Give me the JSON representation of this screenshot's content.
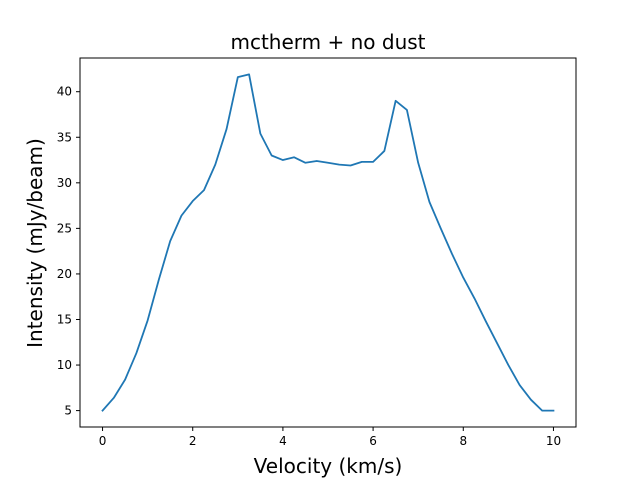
{
  "chart_data": {
    "type": "line",
    "title": "mctherm + no dust",
    "xlabel": "Velocity (km/s)",
    "ylabel": "Intensity (mJy/beam)",
    "xlim": [
      -0.5,
      10.5
    ],
    "ylim": [
      3.2,
      43.7
    ],
    "xticks": [
      0,
      2,
      4,
      6,
      8,
      10
    ],
    "yticks": [
      5,
      10,
      15,
      20,
      25,
      30,
      35,
      40
    ],
    "grid": false,
    "series": [
      {
        "color": "#1f77b4",
        "x": [
          0.0,
          0.25,
          0.5,
          0.75,
          1.0,
          1.25,
          1.5,
          1.75,
          2.0,
          2.25,
          2.5,
          2.75,
          3.0,
          3.25,
          3.5,
          3.75,
          4.0,
          4.25,
          4.5,
          4.75,
          5.0,
          5.25,
          5.5,
          5.75,
          6.0,
          6.25,
          6.5,
          6.75,
          7.0,
          7.25,
          7.5,
          7.75,
          8.0,
          8.25,
          8.5,
          8.75,
          9.0,
          9.25,
          9.5,
          9.75,
          10.0
        ],
        "y": [
          5.0,
          6.4,
          8.4,
          11.3,
          14.9,
          19.4,
          23.6,
          26.4,
          28.0,
          29.2,
          32.0,
          35.9,
          41.6,
          41.9,
          35.4,
          33.0,
          32.5,
          32.8,
          32.2,
          32.4,
          32.2,
          32.0,
          31.9,
          32.3,
          32.3,
          33.5,
          39.0,
          38.0,
          32.2,
          27.9,
          25.0,
          22.2,
          19.6,
          17.3,
          14.8,
          12.4,
          10.0,
          7.8,
          6.2,
          5.0,
          5.0
        ]
      }
    ]
  }
}
